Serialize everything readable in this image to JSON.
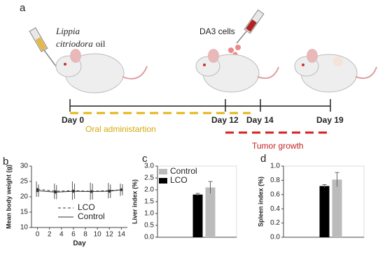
{
  "panel_a": {
    "label": "a",
    "species": "Lippia citriodora",
    "oil": "oil",
    "cells": "DA3 cells",
    "days": [
      "Day 0",
      "Day 12",
      "Day 14",
      "Day 19"
    ],
    "treatment": "Oral administartion",
    "outcome": "Tumor growth"
  },
  "chart_data": [
    {
      "type": "line",
      "panel_label": "b",
      "ylabel": "Mean body weight (g)",
      "xlabel": "Day",
      "x": [
        0,
        3,
        6,
        9,
        12,
        14
      ],
      "series": [
        {
          "name": "LCO",
          "color": "#333333",
          "dash": true,
          "values": [
            22.5,
            21.8,
            22,
            21.8,
            22,
            22.3
          ],
          "errors": [
            2.5,
            2.5,
            3,
            2.8,
            2.5,
            2
          ]
        },
        {
          "name": "Control",
          "color": "#333333",
          "dash": false,
          "values": [
            22,
            21.5,
            21.8,
            21.7,
            21.8,
            22.3
          ],
          "errors": [
            2,
            2.3,
            2.5,
            2.6,
            2.2,
            1.8
          ]
        }
      ],
      "xlim": [
        -1,
        15
      ],
      "xticks": [
        0,
        2,
        4,
        6,
        8,
        10,
        12,
        14
      ],
      "ylim": [
        10,
        30
      ],
      "yticks": [
        10,
        15,
        20,
        25,
        30
      ],
      "legend": "lower right"
    },
    {
      "type": "bar",
      "panel_label": "c",
      "ylabel": "Liver index (%)",
      "series": [
        {
          "name": "LCO",
          "color": "#000000",
          "values": [
            1.8
          ],
          "errors": [
            0.05
          ]
        },
        {
          "name": "Control",
          "color": "#bbbbbb",
          "values": [
            2.1
          ],
          "errors": [
            0.25
          ]
        }
      ],
      "ylim": [
        0,
        3
      ],
      "yticks": [
        {
          "value": 0,
          "label": "0.0"
        },
        0.5,
        {
          "value": 1,
          "label": "1.0"
        },
        1.5,
        {
          "value": 2,
          "label": "2.0"
        },
        2.5,
        {
          "value": 3,
          "label": "3.0"
        }
      ],
      "legend": "upper left"
    },
    {
      "type": "bar",
      "panel_label": "d",
      "ylabel": "Spleen index (%)",
      "series": [
        {
          "name": "LCO",
          "color": "#000000",
          "values": [
            0.72
          ],
          "errors": [
            0.02
          ]
        },
        {
          "name": "Control",
          "color": "#bbbbbb",
          "values": [
            0.81
          ],
          "errors": [
            0.1
          ]
        }
      ],
      "ylim": [
        0,
        1
      ],
      "yticks": [
        {
          "value": 0,
          "label": "0.0"
        },
        0.2,
        0.4,
        0.6,
        0.8,
        {
          "value": 1,
          "label": "1.0"
        }
      ],
      "legend": false
    }
  ]
}
